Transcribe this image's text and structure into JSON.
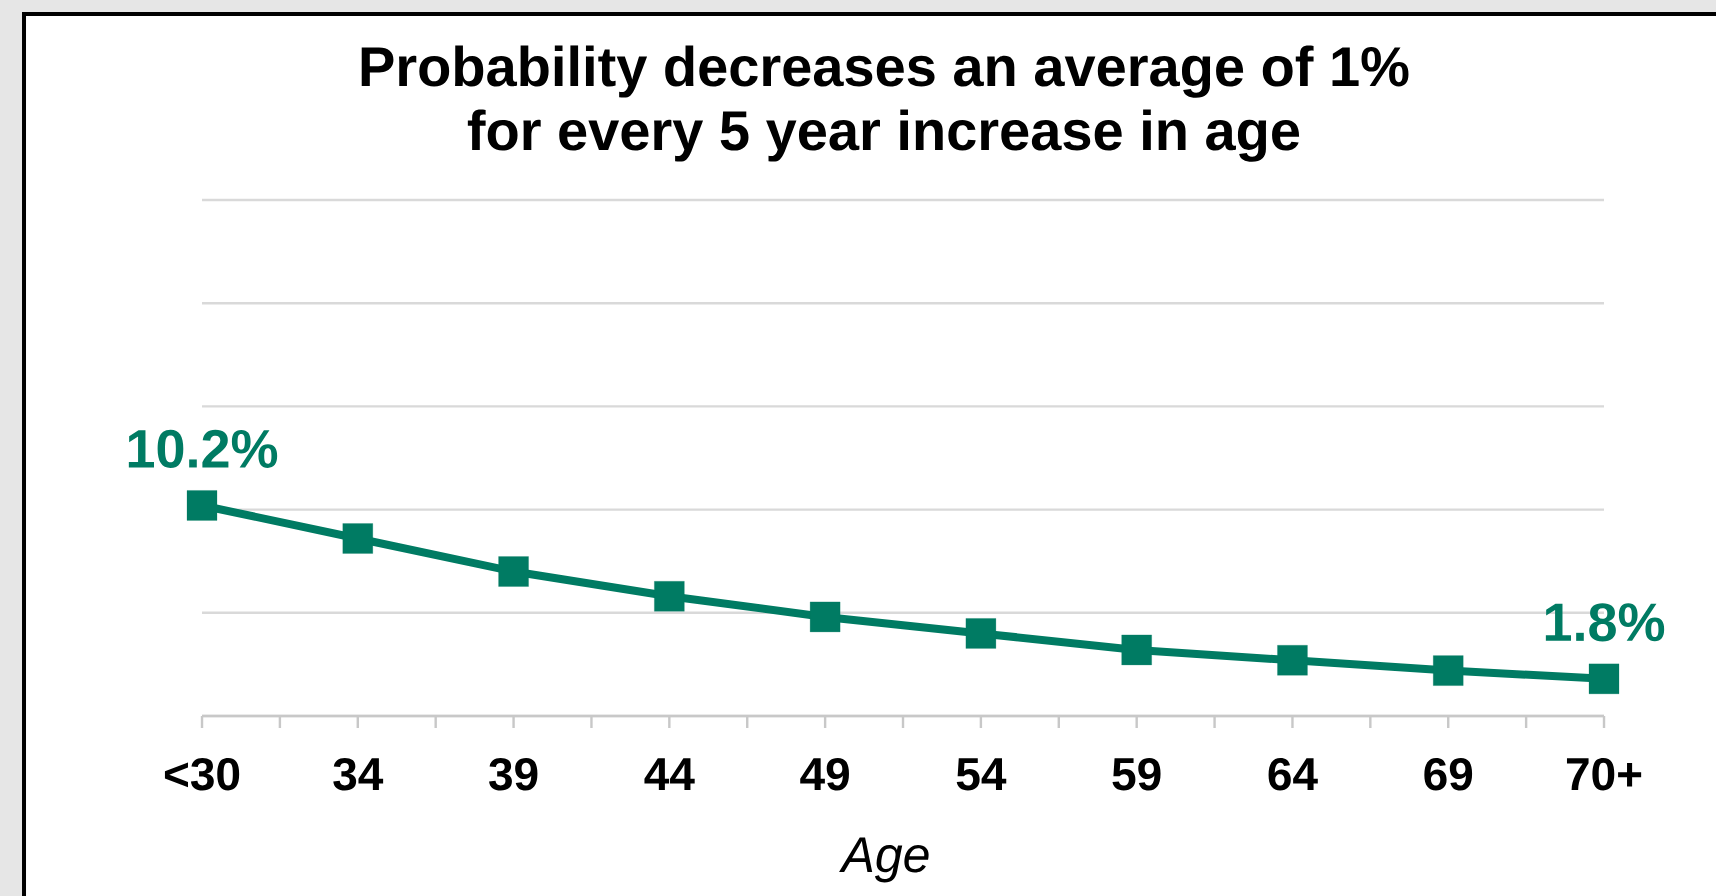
{
  "chart_data": {
    "type": "line",
    "title": "Probability decreases an average of 1% for every 5 year increase in age",
    "xlabel": "Age",
    "categories": [
      "<30",
      "34",
      "39",
      "44",
      "49",
      "54",
      "59",
      "64",
      "69",
      "70+"
    ],
    "values": [
      10.2,
      8.6,
      7.0,
      5.8,
      4.8,
      4.0,
      3.2,
      2.7,
      2.2,
      1.8
    ],
    "value_labels": [
      "10.2%",
      null,
      null,
      null,
      null,
      null,
      null,
      null,
      null,
      "1.8%"
    ],
    "color": "#007b63",
    "ylim": [
      0,
      25
    ],
    "yticks": [
      {
        "value": 0,
        "label": null
      },
      {
        "value": 5,
        "label": null
      },
      {
        "value": 10,
        "label": null
      },
      {
        "value": 15,
        "label": null
      },
      {
        "value": 20,
        "label": null
      },
      {
        "value": 25,
        "label": null
      }
    ],
    "grid": "y",
    "tick_labels": "x",
    "marker": "square",
    "line_style": "solid"
  }
}
